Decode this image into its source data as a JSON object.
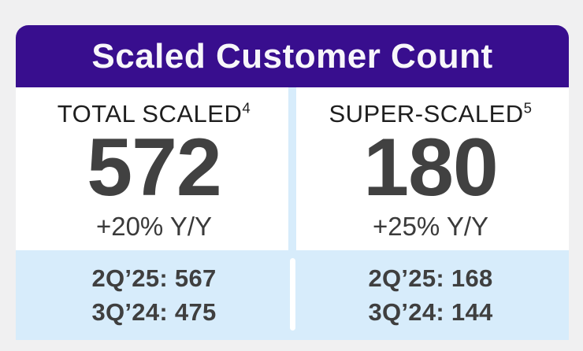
{
  "page": {
    "background_color": "#f0f0f1"
  },
  "card": {
    "title": "Scaled Customer Count",
    "header_bg_color": "#380e8e",
    "panel_bg_color": "#d7ecfb",
    "columns": [
      {
        "label": "TOTAL SCALED",
        "footnote": "4",
        "value": "572",
        "growth": "+20% Y/Y",
        "history": [
          "2Q’25: 567",
          "3Q’24: 475"
        ]
      },
      {
        "label": "SUPER-SCALED",
        "footnote": "5",
        "value": "180",
        "growth": "+25% Y/Y",
        "history": [
          "2Q’25: 168",
          "3Q’24: 144"
        ]
      }
    ]
  },
  "chart_data": {
    "type": "table",
    "title": "Scaled Customer Count",
    "categories": [
      "TOTAL SCALED",
      "SUPER-SCALED"
    ],
    "series": [
      {
        "name": "TOTAL SCALED",
        "current_value": 572,
        "yoy_growth": "+20% Y/Y",
        "values": [
          {
            "period": "3Q’24",
            "value": 475
          },
          {
            "period": "2Q’25",
            "value": 567
          },
          {
            "period": "current",
            "value": 572
          }
        ]
      },
      {
        "name": "SUPER-SCALED",
        "current_value": 180,
        "yoy_growth": "+25% Y/Y",
        "values": [
          {
            "period": "3Q’24",
            "value": 144
          },
          {
            "period": "2Q’25",
            "value": 168
          },
          {
            "period": "current",
            "value": 180
          }
        ]
      }
    ],
    "legend_position": "none",
    "grid": false
  }
}
